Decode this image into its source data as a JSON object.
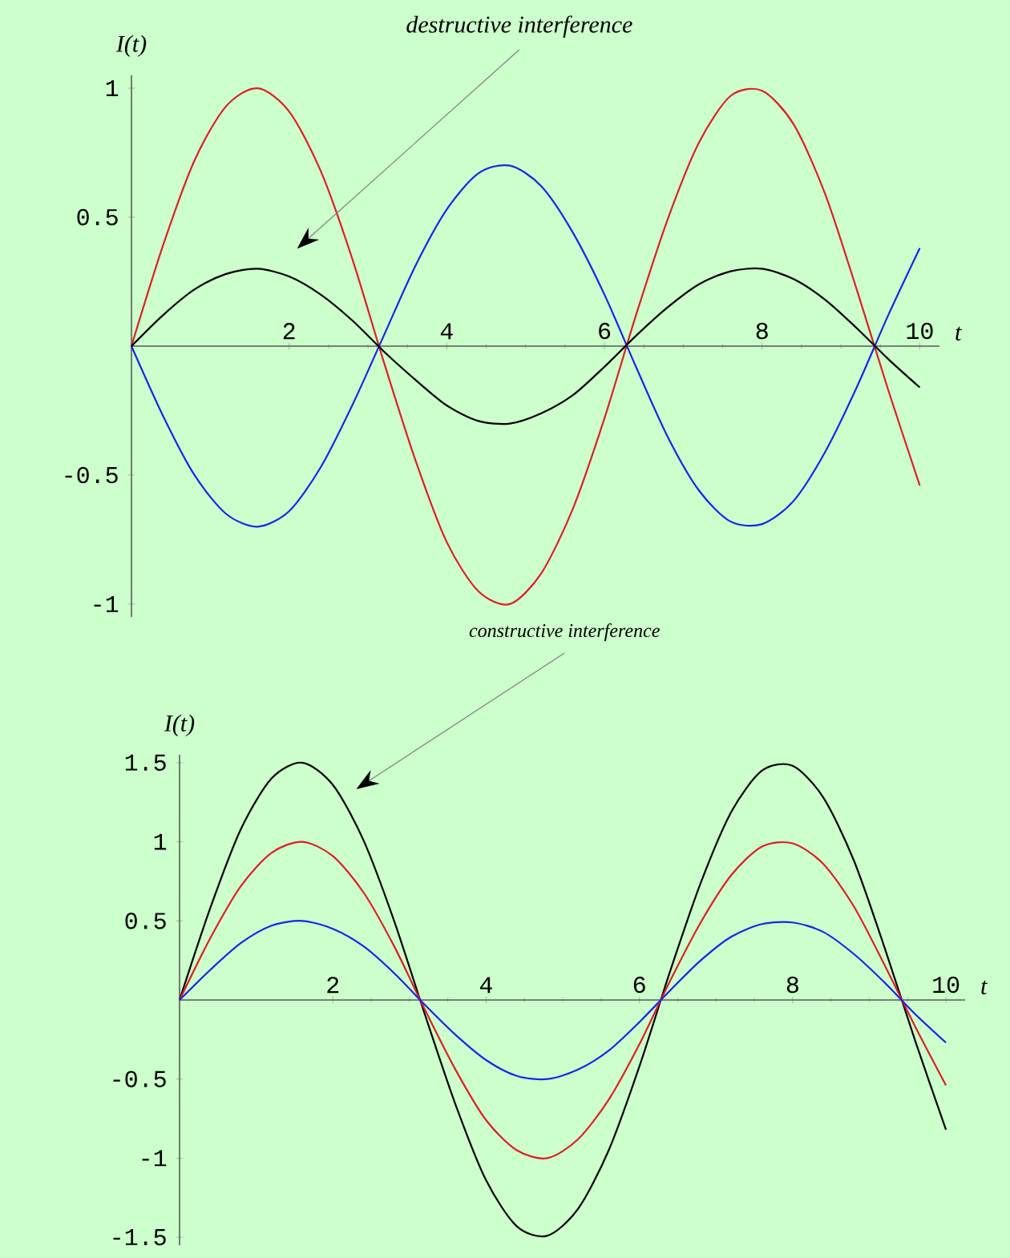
{
  "chart_data": [
    {
      "type": "line",
      "xlabel": "t",
      "ylabel": "I(t)",
      "annotations": [
        "destructive interference"
      ],
      "x": [
        0,
        0.4,
        0.8,
        1.2,
        1.6,
        2.0,
        2.4,
        2.8,
        3.2,
        3.6,
        4.0,
        4.4,
        4.8,
        5.2,
        5.6,
        6.0,
        6.4,
        6.8,
        7.2,
        7.6,
        8.0,
        8.4,
        8.8,
        9.2,
        9.6,
        10.0
      ],
      "series": [
        {
          "color": "#dd1f26",
          "values": [
            0,
            0.39,
            0.72,
            0.93,
            1.0,
            0.91,
            0.68,
            0.34,
            -0.06,
            -0.44,
            -0.76,
            -0.95,
            -1.0,
            -0.88,
            -0.63,
            -0.28,
            0.12,
            0.49,
            0.79,
            0.97,
            0.99,
            0.86,
            0.59,
            0.22,
            -0.17,
            -0.54
          ]
        },
        {
          "color": "#1f22e6",
          "values": [
            0,
            -0.27,
            -0.5,
            -0.65,
            -0.7,
            -0.64,
            -0.47,
            -0.23,
            0.04,
            0.31,
            0.53,
            0.67,
            0.7,
            0.62,
            0.44,
            0.2,
            -0.08,
            -0.35,
            -0.56,
            -0.68,
            -0.69,
            -0.6,
            -0.41,
            -0.16,
            0.12,
            0.38
          ]
        },
        {
          "color": "#000000",
          "values": [
            0,
            0.12,
            0.22,
            0.28,
            0.3,
            0.27,
            0.2,
            0.1,
            -0.02,
            -0.13,
            -0.23,
            -0.29,
            -0.3,
            -0.26,
            -0.19,
            -0.08,
            0.04,
            0.15,
            0.24,
            0.29,
            0.3,
            0.26,
            0.18,
            0.07,
            -0.05,
            -0.16
          ]
        }
      ],
      "xlim": [
        0,
        10.25
      ],
      "ylim": [
        -1.05,
        1.05
      ],
      "xticks": [
        2,
        4,
        6,
        8,
        10
      ],
      "yticks": [
        -1,
        -0.5,
        0.5,
        1
      ]
    },
    {
      "type": "line",
      "xlabel": "t",
      "ylabel": "I(t)",
      "annotations": [
        "constructive interference"
      ],
      "x": [
        0,
        0.4,
        0.8,
        1.2,
        1.6,
        2.0,
        2.4,
        2.8,
        3.2,
        3.6,
        4.0,
        4.4,
        4.8,
        5.2,
        5.6,
        6.0,
        6.4,
        6.8,
        7.2,
        7.6,
        8.0,
        8.4,
        8.8,
        9.2,
        9.6,
        10.0
      ],
      "series": [
        {
          "color": "#000000",
          "values": [
            0,
            0.58,
            1.08,
            1.4,
            1.5,
            1.36,
            1.01,
            0.5,
            -0.09,
            -0.66,
            -1.14,
            -1.43,
            -1.49,
            -1.32,
            -0.95,
            -0.42,
            0.18,
            0.74,
            1.19,
            1.45,
            1.48,
            1.28,
            0.88,
            0.33,
            -0.26,
            -0.82
          ]
        },
        {
          "color": "#dd1f26",
          "values": [
            0,
            0.39,
            0.72,
            0.93,
            1.0,
            0.91,
            0.68,
            0.34,
            -0.06,
            -0.44,
            -0.76,
            -0.95,
            -1.0,
            -0.88,
            -0.63,
            -0.28,
            0.12,
            0.49,
            0.79,
            0.97,
            0.99,
            0.86,
            0.59,
            0.22,
            -0.17,
            -0.54
          ]
        },
        {
          "color": "#1f22e6",
          "values": [
            0,
            0.19,
            0.36,
            0.47,
            0.5,
            0.45,
            0.34,
            0.17,
            -0.03,
            -0.22,
            -0.38,
            -0.48,
            -0.5,
            -0.44,
            -0.32,
            -0.14,
            0.06,
            0.25,
            0.4,
            0.48,
            0.49,
            0.43,
            0.29,
            0.11,
            -0.09,
            -0.27
          ]
        }
      ],
      "xlim": [
        0,
        10.25
      ],
      "ylim": [
        -1.55,
        1.55
      ],
      "xticks": [
        2,
        4,
        6,
        8,
        10
      ],
      "yticks": [
        -1.5,
        -1,
        -0.5,
        0.5,
        1,
        1.5
      ]
    }
  ]
}
